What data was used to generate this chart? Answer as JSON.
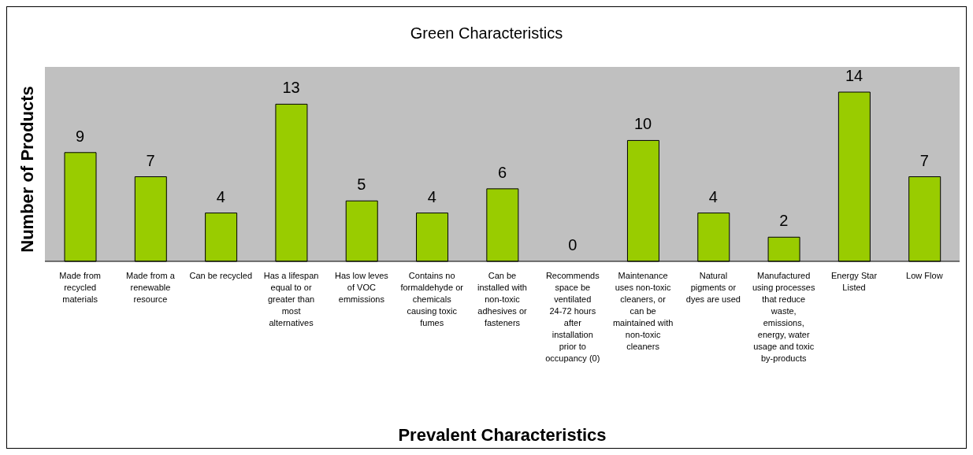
{
  "chart_data": {
    "type": "bar",
    "title": "Green Characteristics",
    "xlabel": "Prevalent Characteristics",
    "ylabel": "Number of Products",
    "categories": [
      "Made from recycled materials",
      "Made from a renewable resource",
      "Can be recycled",
      "Has a lifespan equal to or greater than most alternatives",
      "Has low leves of VOC emmissions",
      "Contains no formaldehyde or chemicals causing toxic fumes",
      "Can be installed with non-toxic adhesives or fasteners",
      "Recommends space be ventilated 24-72 hours after installation prior to occupancy (0)",
      "Maintenance uses non-toxic cleaners, or can be maintained with non-toxic cleaners",
      "Natural pigments or dyes are used",
      "Manufactured using processes that reduce waste, emissions, energy, water usage and toxic by-products",
      "Energy Star Listed",
      "Low Flow"
    ],
    "values": [
      9,
      7,
      4,
      13,
      5,
      4,
      6,
      0,
      10,
      4,
      2,
      14,
      7
    ],
    "color": "#99cc00",
    "data_labels": true
  }
}
